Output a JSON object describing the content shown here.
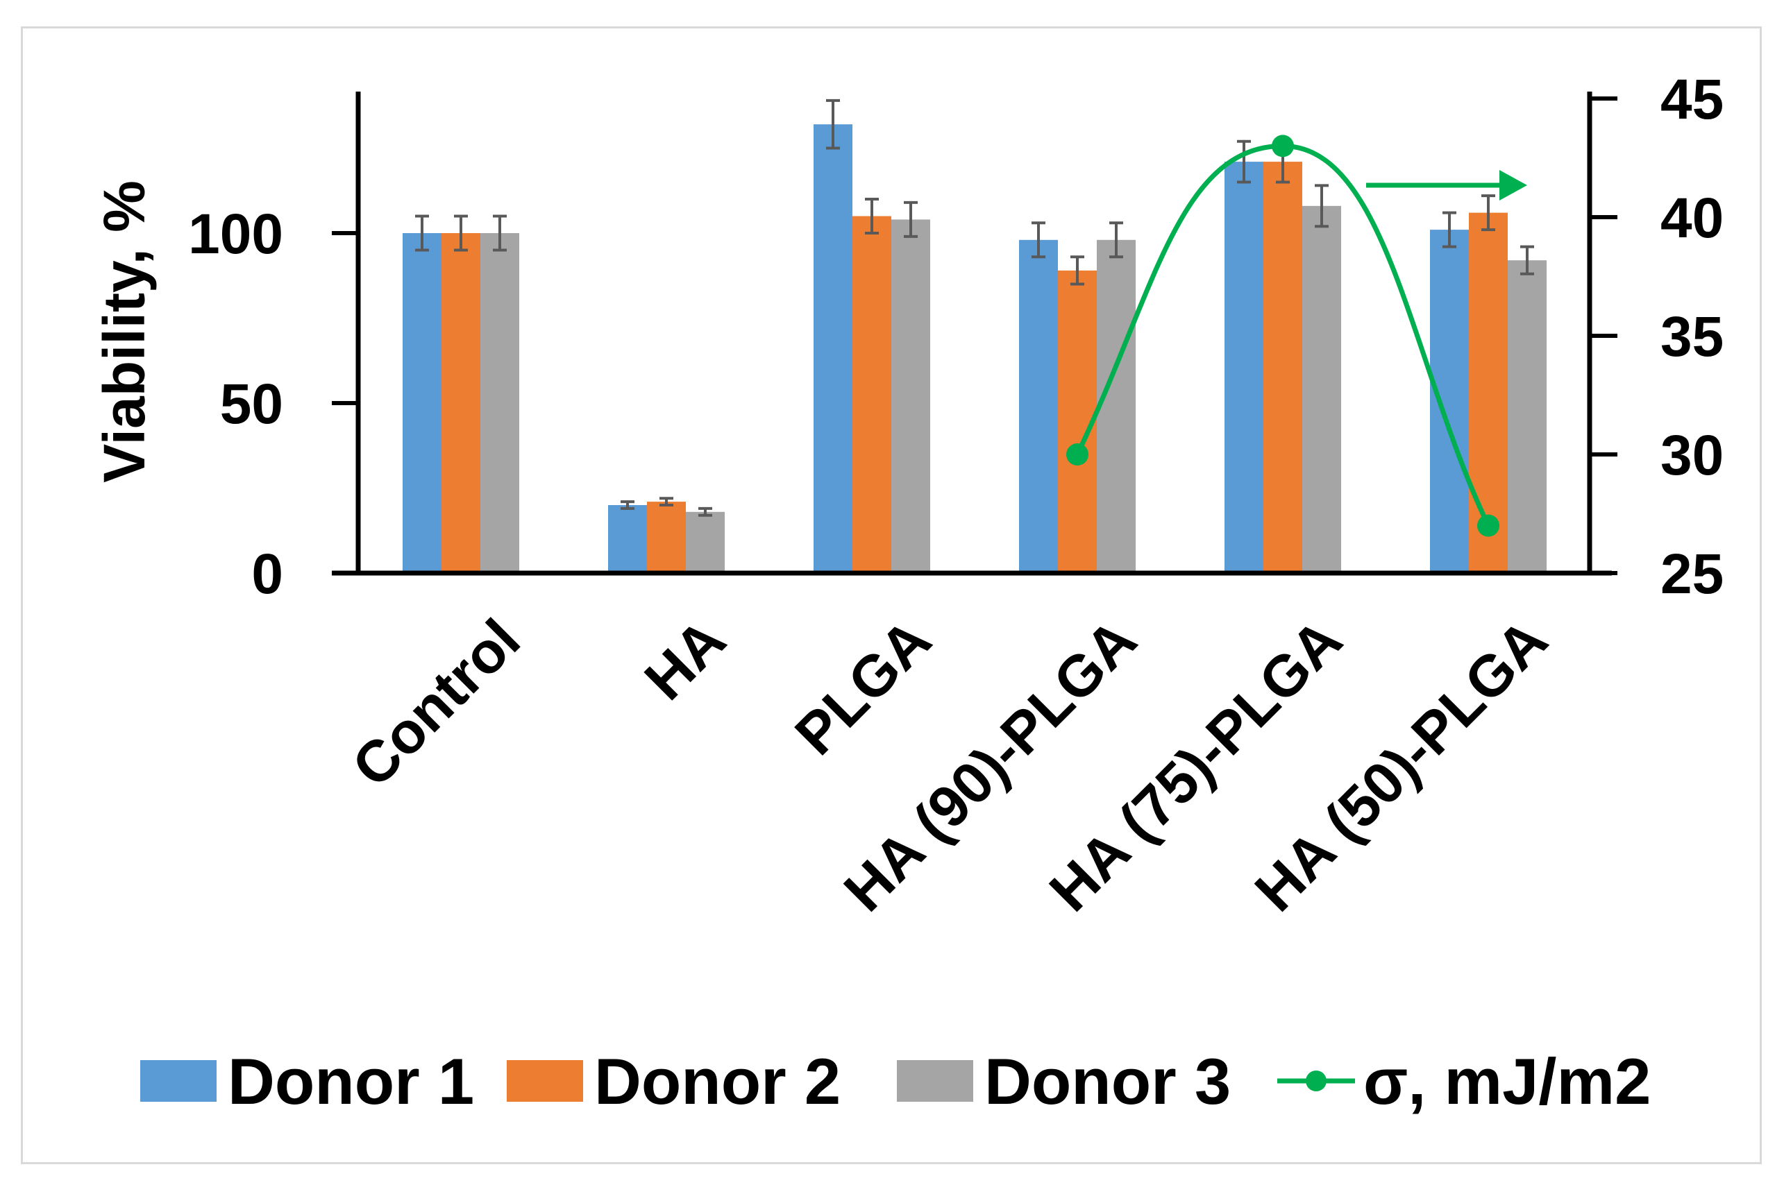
{
  "chart_data": {
    "type": "bar",
    "categories": [
      "Control",
      "HA",
      "PLGA",
      "HA (90)-PLGA",
      "HA (75)-PLGA",
      "HA (50)-PLGA"
    ],
    "series": [
      {
        "name": "Donor 1",
        "color": "#5b9bd5",
        "values": [
          100,
          20,
          132,
          98,
          121,
          101
        ],
        "errors": [
          5,
          1,
          7,
          5,
          6,
          5
        ]
      },
      {
        "name": "Donor  2",
        "color": "#ed7d31",
        "values": [
          100,
          21,
          105,
          89,
          121,
          106
        ],
        "errors": [
          5,
          1,
          5,
          4,
          6,
          5
        ]
      },
      {
        "name": "Donor  3",
        "color": "#a5a5a5",
        "values": [
          100,
          18,
          104,
          98,
          108,
          92
        ],
        "errors": [
          5,
          1,
          5,
          5,
          6,
          4
        ]
      }
    ],
    "line_series": {
      "name": "σ, mJ/m2",
      "color": "#00b050",
      "axis": "right",
      "categories": [
        "HA (90)-PLGA",
        "HA (75)-PLGA",
        "HA (50)-PLGA"
      ],
      "values": [
        30,
        43,
        27
      ]
    },
    "ylabel": "Viability, %",
    "ylim": [
      0,
      140
    ],
    "yticks": [
      0,
      50,
      100
    ],
    "y2lim": [
      25,
      45
    ],
    "y2ticks": [
      25,
      30,
      35,
      40,
      45
    ],
    "annotation": "arrow pointing to right axis",
    "legend_position": "bottom"
  }
}
